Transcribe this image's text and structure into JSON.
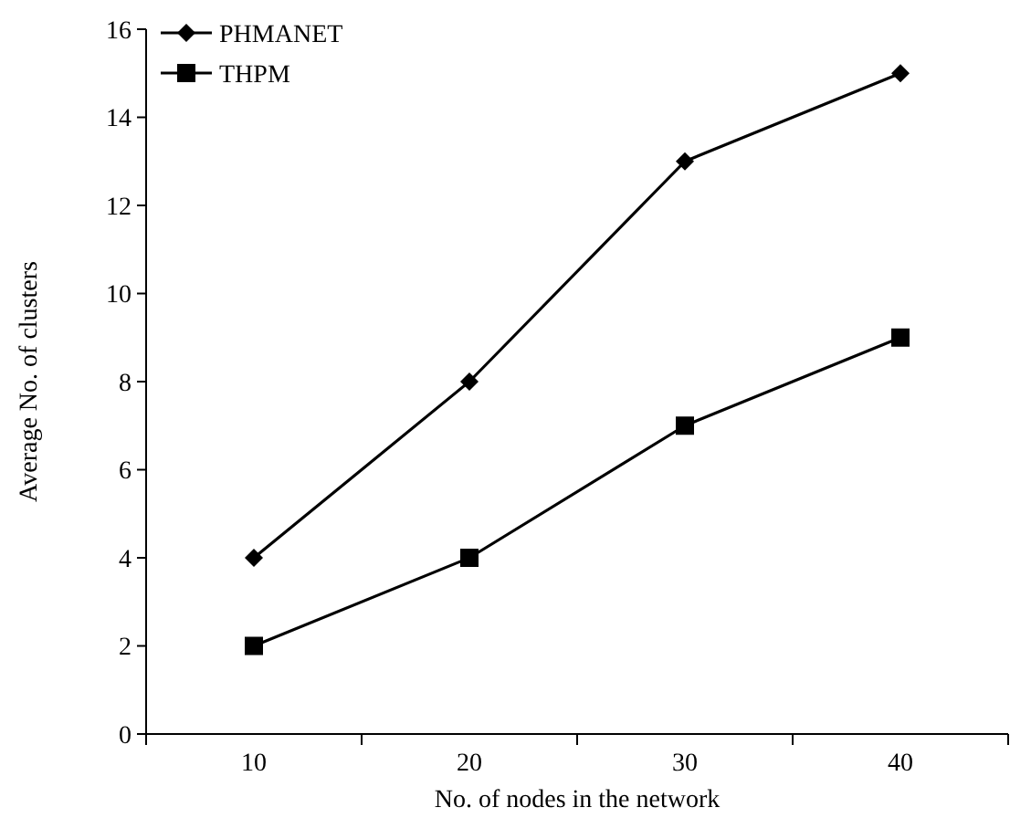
{
  "chart_data": {
    "type": "line",
    "xlabel": "No. of nodes in the network",
    "ylabel": "Average No. of clusters",
    "categories": [
      "10",
      "20",
      "30",
      "40"
    ],
    "series": [
      {
        "name": "PHMANET",
        "color": "#000000",
        "marker": "diamond",
        "values": [
          4,
          8,
          13,
          15
        ]
      },
      {
        "name": "THPM",
        "color": "#000000",
        "marker": "square",
        "values": [
          2,
          4,
          7,
          9
        ]
      }
    ],
    "ylim": [
      0,
      16
    ],
    "yticks": [
      0,
      2,
      4,
      6,
      8,
      10,
      12,
      14,
      16
    ],
    "legend": "top left",
    "grid": false,
    "line_style": "solid"
  }
}
